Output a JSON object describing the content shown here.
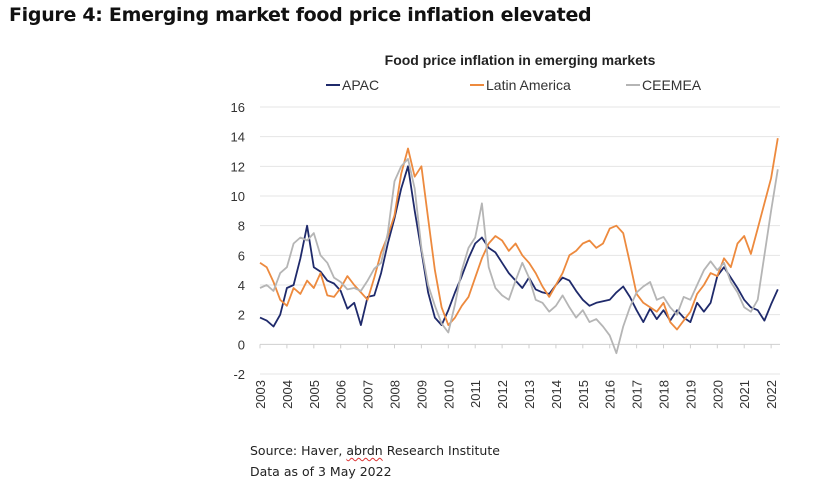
{
  "figure_title": "Figure 4: Emerging market food price inflation elevated",
  "footer": {
    "source_prefix": "Source: Haver, ",
    "source_flagged_word": "abrdn",
    "source_suffix": " Research Institute",
    "data_as_of": "Data as of 3 May 2022"
  },
  "chart_data": {
    "type": "line",
    "title": "Food price inflation in emerging markets",
    "xlabel": "",
    "ylabel": "",
    "ylim": [
      -2,
      16
    ],
    "yticks": [
      -2,
      0,
      2,
      4,
      6,
      8,
      10,
      12,
      14,
      16
    ],
    "xlim": [
      2003.0,
      2022.33
    ],
    "xticks": [
      2003,
      2004,
      2005,
      2006,
      2007,
      2008,
      2009,
      2010,
      2011,
      2012,
      2013,
      2014,
      2015,
      2016,
      2017,
      2018,
      2019,
      2020,
      2021,
      2022
    ],
    "grid": true,
    "legend": "top",
    "x": [
      2003.0,
      2003.25,
      2003.5,
      2003.75,
      2004.0,
      2004.25,
      2004.5,
      2004.75,
      2005.0,
      2005.25,
      2005.5,
      2005.75,
      2006.0,
      2006.25,
      2006.5,
      2006.75,
      2007.0,
      2007.25,
      2007.5,
      2007.75,
      2008.0,
      2008.25,
      2008.5,
      2008.75,
      2009.0,
      2009.25,
      2009.5,
      2009.75,
      2010.0,
      2010.25,
      2010.5,
      2010.75,
      2011.0,
      2011.25,
      2011.5,
      2011.75,
      2012.0,
      2012.25,
      2012.5,
      2012.75,
      2013.0,
      2013.25,
      2013.5,
      2013.75,
      2014.0,
      2014.25,
      2014.5,
      2014.75,
      2015.0,
      2015.25,
      2015.5,
      2015.75,
      2016.0,
      2016.25,
      2016.5,
      2016.75,
      2017.0,
      2017.25,
      2017.5,
      2017.75,
      2018.0,
      2018.25,
      2018.5,
      2018.75,
      2019.0,
      2019.25,
      2019.5,
      2019.75,
      2020.0,
      2020.25,
      2020.5,
      2020.75,
      2021.0,
      2021.25,
      2021.5,
      2021.75,
      2022.0,
      2022.25
    ],
    "series": [
      {
        "name": "APAC",
        "color": "#1f2a6b",
        "values": [
          1.8,
          1.6,
          1.2,
          2.0,
          3.8,
          4.0,
          5.8,
          8.0,
          5.2,
          4.9,
          4.3,
          4.1,
          3.6,
          2.4,
          2.8,
          1.3,
          3.2,
          3.3,
          4.8,
          6.8,
          8.5,
          10.5,
          12.0,
          9.0,
          6.3,
          3.5,
          1.8,
          1.3,
          2.3,
          3.5,
          4.6,
          5.8,
          6.8,
          7.2,
          6.5,
          6.2,
          5.5,
          4.8,
          4.3,
          3.8,
          4.5,
          3.7,
          3.5,
          3.4,
          4.0,
          4.5,
          4.3,
          3.6,
          3.0,
          2.6,
          2.8,
          2.9,
          3.0,
          3.5,
          3.9,
          3.2,
          2.3,
          1.5,
          2.4,
          1.7,
          2.3,
          1.6,
          2.3,
          1.8,
          1.5,
          2.8,
          2.2,
          2.8,
          4.6,
          5.2,
          4.5,
          3.8,
          3.0,
          2.5,
          2.3,
          1.6,
          2.7,
          3.7
        ]
      },
      {
        "name": "Latin America",
        "color": "#ed8a3e",
        "values": [
          5.5,
          5.2,
          4.2,
          3.0,
          2.6,
          3.8,
          3.4,
          4.3,
          3.8,
          4.8,
          3.3,
          3.2,
          3.8,
          4.6,
          4.0,
          3.5,
          3.0,
          4.5,
          6.2,
          7.3,
          8.7,
          11.5,
          13.2,
          11.3,
          12.0,
          8.5,
          5.0,
          2.5,
          1.3,
          1.8,
          2.6,
          3.2,
          4.5,
          5.8,
          6.8,
          7.3,
          7.0,
          6.3,
          6.8,
          6.0,
          5.5,
          4.8,
          3.9,
          3.2,
          4.0,
          4.8,
          6.0,
          6.3,
          6.8,
          7.0,
          6.5,
          6.8,
          7.8,
          8.0,
          7.5,
          5.5,
          3.4,
          2.8,
          2.5,
          2.2,
          2.8,
          1.5,
          1.0,
          1.6,
          2.2,
          3.4,
          4.0,
          4.8,
          4.6,
          5.8,
          5.2,
          6.8,
          7.3,
          6.1,
          7.8,
          9.5,
          11.2,
          13.9
        ]
      },
      {
        "name": "CEEMEA",
        "color": "#b5b5b5",
        "values": [
          3.8,
          4.0,
          3.6,
          4.8,
          5.2,
          6.8,
          7.2,
          7.0,
          7.5,
          6.0,
          5.5,
          4.5,
          4.2,
          3.7,
          3.8,
          3.6,
          4.3,
          5.1,
          5.5,
          7.5,
          11.0,
          12.0,
          12.5,
          10.5,
          6.5,
          4.0,
          2.6,
          1.4,
          0.8,
          2.7,
          5.0,
          6.5,
          7.2,
          9.5,
          5.2,
          3.8,
          3.3,
          3.0,
          4.3,
          5.5,
          4.5,
          3.0,
          2.8,
          2.2,
          2.6,
          3.3,
          2.5,
          1.8,
          2.3,
          1.5,
          1.7,
          1.2,
          0.6,
          -0.6,
          1.2,
          2.5,
          3.5,
          3.9,
          4.2,
          3.0,
          3.2,
          2.5,
          2.0,
          3.2,
          3.0,
          4.0,
          5.0,
          5.6,
          5.0,
          5.5,
          4.2,
          3.5,
          2.5,
          2.2,
          3.0,
          6.0,
          9.0,
          11.8
        ]
      }
    ]
  }
}
